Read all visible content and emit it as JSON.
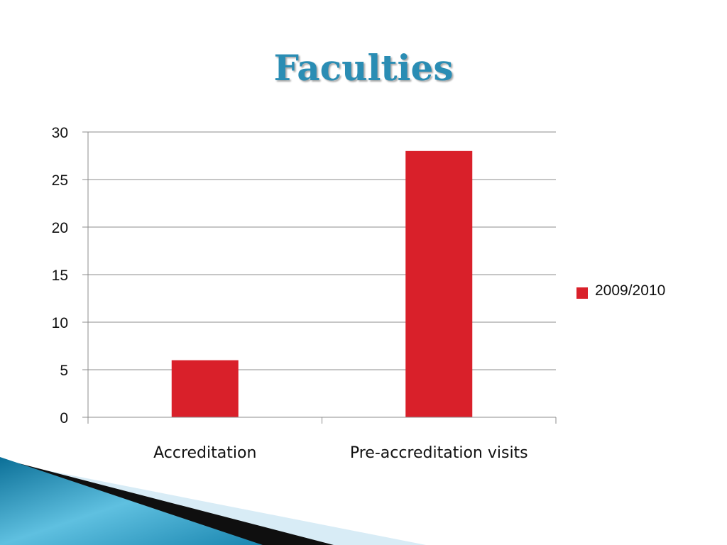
{
  "slide": {
    "title": "Faculties"
  },
  "colors": {
    "title": "#2a8db4",
    "bar": "#d9202a",
    "grid": "#8c8c8c"
  },
  "chart_data": {
    "type": "bar",
    "categories": [
      "Accreditation",
      "Pre-accreditation visits"
    ],
    "series": [
      {
        "name": "2009/2010",
        "values": [
          6,
          28
        ]
      }
    ],
    "ylim": [
      0,
      30
    ],
    "yticks": [
      0,
      5,
      10,
      15,
      20,
      25,
      30
    ],
    "xlabel": "",
    "ylabel": "",
    "grid": true,
    "legend_position": "right"
  }
}
